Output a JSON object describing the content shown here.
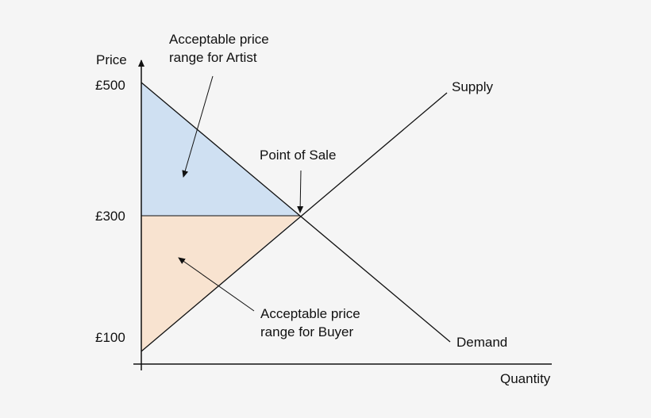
{
  "axes": {
    "y_label": "Price",
    "x_label": "Quantity",
    "y_ticks": [
      "£500",
      "£300",
      "£100"
    ]
  },
  "curves": {
    "supply_label": "Supply",
    "demand_label": "Demand"
  },
  "annotations": {
    "artist_range": [
      "Acceptable price",
      "range for Artist"
    ],
    "buyer_range": [
      "Acceptable price",
      "range for Buyer"
    ],
    "point_of_sale": "Point of Sale"
  },
  "colors": {
    "artist_region": "#cfe0f2",
    "buyer_region": "#f8e3d0",
    "line": "#111111",
    "background": "#f5f5f5"
  }
}
